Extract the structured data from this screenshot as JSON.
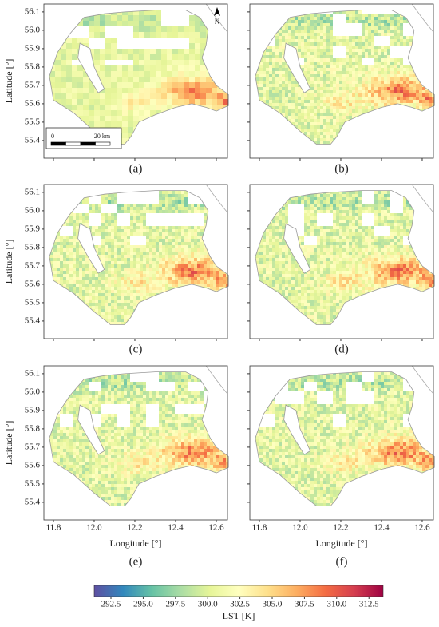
{
  "panels": [
    {
      "label": "(a)"
    },
    {
      "label": "(b)"
    },
    {
      "label": "(c)"
    },
    {
      "label": "(d)"
    },
    {
      "label": "(e)"
    },
    {
      "label": "(f)"
    }
  ],
  "axes": {
    "xlabel": "Longitude [°]",
    "ylabel": "Latitude [°]",
    "xlim": [
      11.753,
      12.655
    ],
    "ylim": [
      55.304,
      56.143
    ],
    "xticks": [
      11.8,
      {
        "value": 12.0,
        "label": "12.0"
      },
      12.2,
      12.4,
      12.6
    ],
    "yticks": [
      55.4,
      55.5,
      55.6,
      55.7,
      55.8,
      55.9,
      {
        "value": 56.0,
        "label": "56.0"
      },
      56.1
    ]
  },
  "scalebar": {
    "start": "0",
    "end": "20 km"
  },
  "north": "N",
  "colorbar": {
    "label": "LST [K]",
    "clim": [
      291.2,
      313.6
    ],
    "ticks": [
      292.5,
      {
        "value": 295,
        "label": "295.0"
      },
      297.5,
      {
        "value": 300,
        "label": "300.0"
      },
      302.5,
      {
        "value": 305,
        "label": "305.0"
      },
      307.5,
      {
        "value": 310,
        "label": "310.0"
      },
      312.5
    ]
  }
}
